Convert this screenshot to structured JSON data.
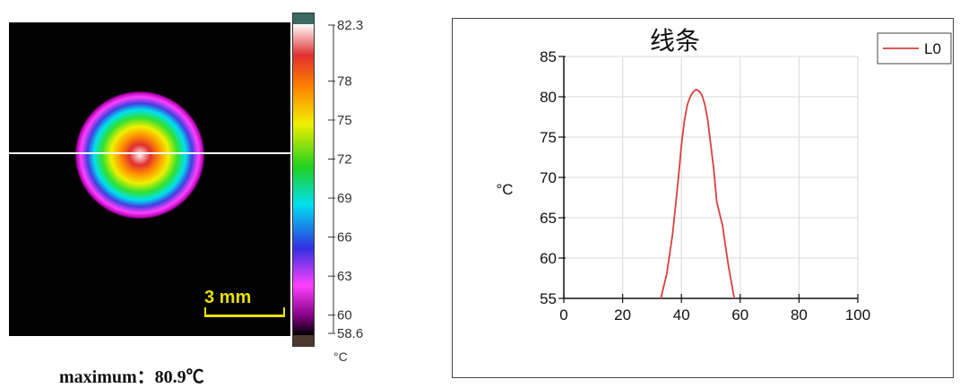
{
  "thermal": {
    "scale_label": "3 mm",
    "colorbar_ticks": [
      82.3,
      78,
      75,
      72,
      69,
      66,
      63,
      60,
      58.6
    ],
    "colorbar_tick_labels": [
      "82.3",
      "78",
      "75",
      "72",
      "69",
      "66",
      "63",
      "60",
      "58.6"
    ],
    "colorbar_range": [
      58.6,
      82.3
    ],
    "unit": "°C",
    "maximum_text": "maximum：80.9℃",
    "maximum_value": 80.9,
    "colors": {
      "background": "#000000",
      "scan_line": "#ffffff",
      "scale_bar": "#e8e000"
    }
  },
  "chart_data": {
    "type": "line",
    "title": "线条",
    "xlabel": "",
    "ylabel": "°C",
    "xlim": [
      0,
      100
    ],
    "ylim": [
      55,
      85
    ],
    "xticks": [
      0,
      20,
      40,
      60,
      80,
      100
    ],
    "yticks": [
      55,
      60,
      65,
      70,
      75,
      80,
      85
    ],
    "grid": true,
    "legend": "top-right",
    "series": [
      {
        "name": "L0",
        "color": "#d94040",
        "x": [
          33,
          35,
          37,
          39,
          40,
          41,
          42,
          43,
          44,
          45,
          46,
          47,
          48,
          49,
          50,
          51,
          52,
          54,
          56,
          58
        ],
        "y": [
          55,
          58,
          63,
          70,
          74,
          77,
          79,
          80,
          80.6,
          80.9,
          80.7,
          80.2,
          79,
          77,
          74,
          71,
          67,
          64,
          59,
          55
        ]
      }
    ]
  }
}
